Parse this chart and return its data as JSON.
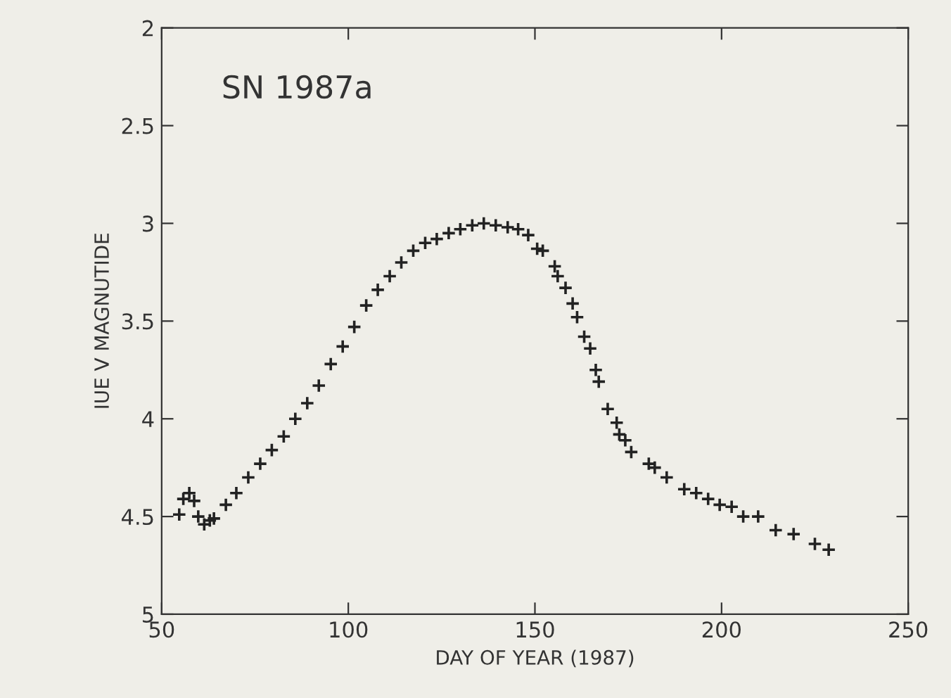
{
  "chart_data": {
    "type": "scatter",
    "xlabel": "DAY OF YEAR (1987)",
    "ylabel": "IUE V MAGNUTIDE",
    "annotations": [
      "SN 1987a"
    ],
    "xlim": [
      50,
      250
    ],
    "xticks": [
      50,
      100,
      150,
      200,
      250
    ],
    "ylim": [
      5,
      2
    ],
    "yticks": [
      2,
      2.5,
      3,
      3.5,
      4,
      4.5,
      5
    ],
    "grid": false,
    "marker": "cross",
    "series": [
      {
        "color": "#222222",
        "x": [
          54.7,
          55.8,
          57.4,
          58.7,
          59.8,
          61.4,
          62.9,
          64,
          67.2,
          70,
          73.2,
          76.4,
          79.5,
          82.7,
          85.8,
          89,
          92.1,
          95.3,
          98.5,
          101.6,
          104.8,
          107.9,
          111.1,
          114.2,
          117.4,
          120.6,
          123.7,
          126.9,
          130,
          133.2,
          136.3,
          139.5,
          142.7,
          145.5,
          148.2,
          150.6,
          152.1,
          155.3,
          156.1,
          158.2,
          160.1,
          161.3,
          163.2,
          164.8,
          166.3,
          167.1,
          169.5,
          171.9,
          172.6,
          174.2,
          175.8,
          180.5,
          182.1,
          185.3,
          190,
          193.2,
          196.4,
          199.5,
          202.7,
          205.8,
          209.8,
          214.5,
          219.3,
          225,
          228.7
        ],
        "values": [
          4.49,
          4.41,
          4.38,
          4.42,
          4.5,
          4.54,
          4.52,
          4.51,
          4.44,
          4.38,
          4.3,
          4.23,
          4.16,
          4.09,
          4.0,
          3.92,
          3.83,
          3.72,
          3.63,
          3.53,
          3.42,
          3.34,
          3.27,
          3.2,
          3.14,
          3.1,
          3.08,
          3.05,
          3.03,
          3.01,
          3.0,
          3.01,
          3.02,
          3.03,
          3.06,
          3.13,
          3.14,
          3.22,
          3.27,
          3.33,
          3.41,
          3.48,
          3.58,
          3.64,
          3.75,
          3.81,
          3.95,
          4.02,
          4.08,
          4.11,
          4.17,
          4.23,
          4.25,
          4.3,
          4.36,
          4.38,
          4.41,
          4.44,
          4.45,
          4.5,
          4.5,
          4.57,
          4.59,
          4.64,
          4.67
        ]
      }
    ]
  }
}
